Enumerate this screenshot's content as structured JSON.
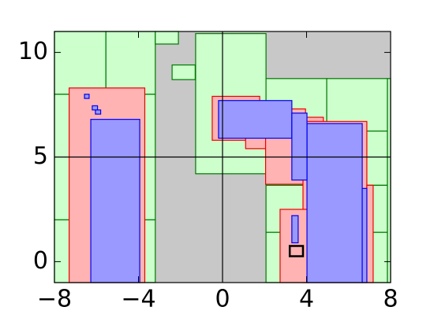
{
  "chart_data": {
    "type": "rects",
    "xlim": [
      -8,
      8
    ],
    "ylim": [
      -1,
      11
    ],
    "xticks": [
      {
        "value": -8,
        "label": "−8"
      },
      {
        "value": -4,
        "label": "−4"
      },
      0,
      4,
      8
    ],
    "yticks": [
      0,
      5,
      10
    ],
    "background": "#c8c8c8",
    "crosshair": {
      "x": 0,
      "y": 5
    },
    "layers": [
      {
        "fill": "#ccffcc",
        "edge": "#007700",
        "rects": [
          [
            -8,
            8,
            -5.55,
            11
          ],
          [
            -5.55,
            8,
            -3.2,
            11
          ],
          [
            -8,
            2,
            -3.2,
            8
          ],
          [
            -8,
            -1,
            -3.2,
            2
          ],
          [
            -3.2,
            10.4,
            -2.1,
            11
          ],
          [
            -2.4,
            8.7,
            -1.3,
            9.4
          ],
          [
            -1.28,
            4.2,
            2.07,
            10.9
          ],
          [
            2.07,
            6.24,
            4.96,
            8.75
          ],
          [
            4.96,
            6.24,
            7.85,
            8.75
          ],
          [
            2.07,
            3.65,
            7.85,
            6.24
          ],
          [
            2.07,
            1.4,
            7.85,
            3.65
          ],
          [
            2.07,
            -1,
            7.85,
            1.4
          ],
          [
            7.85,
            -1,
            8,
            8.75
          ]
        ]
      },
      {
        "fill": "#ffb3b3",
        "edge": "#ee0000",
        "rects": [
          [
            -7.3,
            -1,
            -3.7,
            8.3
          ],
          [
            -0.49,
            5.8,
            1.77,
            7.9
          ],
          [
            1.1,
            5.4,
            3.95,
            7.3
          ],
          [
            2.05,
            3.7,
            4.8,
            6.9
          ],
          [
            3.83,
            -1,
            6.87,
            6.7
          ],
          [
            2.74,
            -1,
            4.1,
            2.5
          ],
          [
            6.87,
            -1,
            7.17,
            3.65
          ]
        ]
      },
      {
        "fill": "#9999ff",
        "edge": "#0000ee",
        "rects": [
          [
            -6.27,
            -1,
            -3.94,
            6.8
          ],
          [
            -6.57,
            7.8,
            -6.35,
            8.0
          ],
          [
            -6.2,
            7.25,
            -5.95,
            7.45
          ],
          [
            -6.05,
            7.05,
            -5.8,
            7.25
          ],
          [
            -0.19,
            5.9,
            3.3,
            7.7
          ],
          [
            4.02,
            -1,
            6.65,
            6.6
          ],
          [
            3.3,
            3.9,
            4.02,
            7.1
          ],
          [
            3.3,
            0.9,
            3.6,
            2.2
          ],
          [
            6.65,
            -1,
            6.87,
            3.5
          ]
        ]
      },
      {
        "fill": "none",
        "edge": "#000000",
        "rects": [
          [
            3.2,
            0.26,
            3.83,
            0.75
          ]
        ]
      }
    ]
  }
}
